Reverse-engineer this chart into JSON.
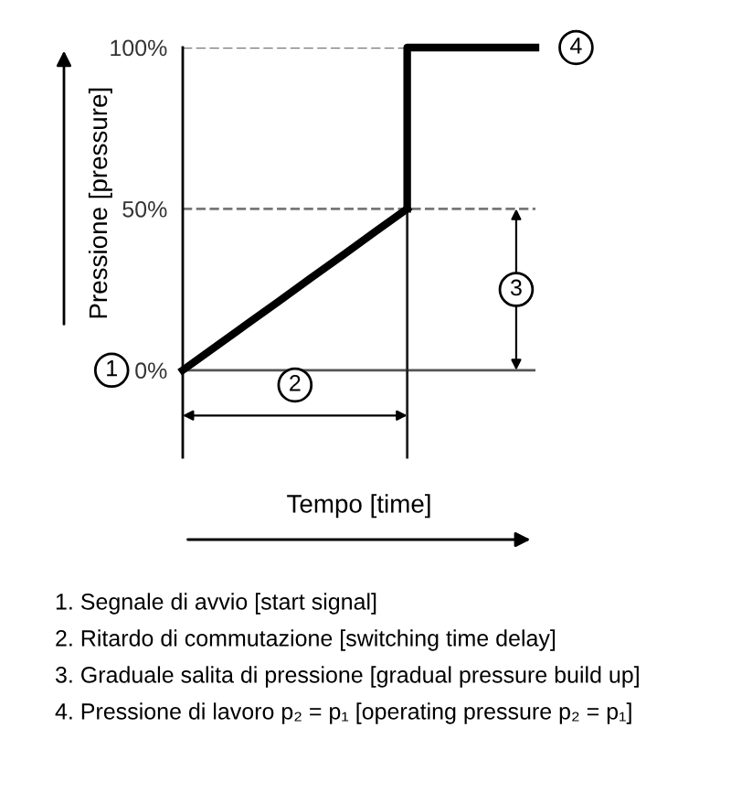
{
  "chart_data": {
    "type": "line",
    "xlabel": "Tempo [time]",
    "ylabel": "Pressione [pressure]",
    "categories": [
      null,
      null,
      null,
      null,
      null,
      null,
      null,
      null,
      null,
      null,
      null,
      null
    ],
    "series": [
      {
        "color": "#000000",
        "values": [
          0,
          7.1,
          14.3,
          21.4,
          28.6,
          35.7,
          42.9,
          50,
          null,
          null,
          null,
          null
        ]
      },
      {
        "type": "step",
        "color": "#000000",
        "values": [
          null,
          null,
          null,
          null,
          null,
          null,
          null,
          50,
          100,
          100,
          100,
          100
        ]
      }
    ],
    "ylim": [
      -27,
      100
    ],
    "yticks": [
      {
        "value": 0,
        "label": "0%"
      },
      {
        "value": 50,
        "label": "50%"
      },
      {
        "value": 100,
        "label": "100%"
      }
    ],
    "tick_labels": "y",
    "grid": false,
    "marker": "none",
    "line_style": "solid",
    "ref_lines": [
      {
        "axis": "y",
        "value": 0,
        "color": "#555555",
        "line_style": "solid"
      },
      {
        "axis": "y",
        "value": 50,
        "color": "#777777",
        "line_style": "dashed"
      },
      {
        "axis": "y",
        "value": 100,
        "color": "#777777",
        "line_style": "dashed"
      }
    ],
    "annotations": [
      "1",
      "2",
      "3",
      "4",
      "1. Segnale di avvio [start signal]",
      "2. Ritardo di commutazione [switching time delay]",
      "3. Graduale salita di pressione [gradual pressure build up]",
      "4. Pressione di lavoro p₂ = p₁ [operating pressure p₂ = p₁]"
    ]
  }
}
